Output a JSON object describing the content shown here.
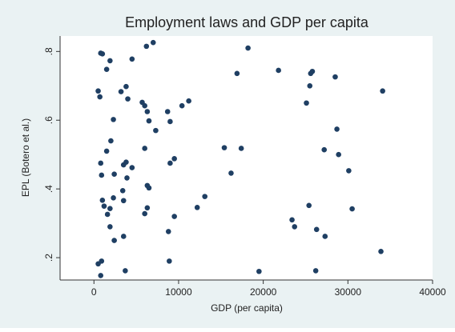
{
  "chart_data": {
    "type": "scatter",
    "title": "Employment laws and GDP per capita",
    "xlabel": "GDP (per capita)",
    "ylabel": "EPL (Botero et al.)",
    "xlim": [
      -4000,
      40000
    ],
    "ylim": [
      0.135,
      0.845
    ],
    "xticks": [
      0,
      10000,
      20000,
      30000,
      40000
    ],
    "yticks": [
      0.2,
      0.4,
      0.6,
      0.8
    ],
    "xtick_labels": [
      "0",
      "10000",
      "20000",
      "30000",
      "40000"
    ],
    "ytick_labels": [
      ".2",
      ".4",
      ".6",
      ".8"
    ],
    "grid": "horizontal",
    "points": [
      {
        "x": 800,
        "y": 0.795
      },
      {
        "x": 1000,
        "y": 0.793
      },
      {
        "x": 1900,
        "y": 0.773
      },
      {
        "x": 1500,
        "y": 0.748
      },
      {
        "x": 4500,
        "y": 0.778
      },
      {
        "x": 6200,
        "y": 0.815
      },
      {
        "x": 7000,
        "y": 0.826
      },
      {
        "x": 500,
        "y": 0.685
      },
      {
        "x": 700,
        "y": 0.668
      },
      {
        "x": 3200,
        "y": 0.683
      },
      {
        "x": 3800,
        "y": 0.698
      },
      {
        "x": 4000,
        "y": 0.662
      },
      {
        "x": 2300,
        "y": 0.602
      },
      {
        "x": 5700,
        "y": 0.652
      },
      {
        "x": 6000,
        "y": 0.642
      },
      {
        "x": 6300,
        "y": 0.625
      },
      {
        "x": 6500,
        "y": 0.598
      },
      {
        "x": 7300,
        "y": 0.57
      },
      {
        "x": 1500,
        "y": 0.51
      },
      {
        "x": 2000,
        "y": 0.54
      },
      {
        "x": 6000,
        "y": 0.518
      },
      {
        "x": 800,
        "y": 0.475
      },
      {
        "x": 900,
        "y": 0.44
      },
      {
        "x": 2400,
        "y": 0.443
      },
      {
        "x": 3500,
        "y": 0.47
      },
      {
        "x": 3800,
        "y": 0.478
      },
      {
        "x": 4500,
        "y": 0.462
      },
      {
        "x": 3900,
        "y": 0.432
      },
      {
        "x": 2300,
        "y": 0.374
      },
      {
        "x": 3400,
        "y": 0.395
      },
      {
        "x": 3500,
        "y": 0.366
      },
      {
        "x": 1000,
        "y": 0.367
      },
      {
        "x": 1200,
        "y": 0.35
      },
      {
        "x": 1600,
        "y": 0.326
      },
      {
        "x": 1900,
        "y": 0.343
      },
      {
        "x": 1900,
        "y": 0.29
      },
      {
        "x": 2400,
        "y": 0.25
      },
      {
        "x": 3500,
        "y": 0.262
      },
      {
        "x": 500,
        "y": 0.182
      },
      {
        "x": 900,
        "y": 0.19
      },
      {
        "x": 800,
        "y": 0.148
      },
      {
        "x": 3700,
        "y": 0.162
      },
      {
        "x": 6300,
        "y": 0.41
      },
      {
        "x": 6500,
        "y": 0.403
      },
      {
        "x": 6300,
        "y": 0.345
      },
      {
        "x": 6000,
        "y": 0.328
      },
      {
        "x": 8700,
        "y": 0.625
      },
      {
        "x": 9000,
        "y": 0.596
      },
      {
        "x": 10400,
        "y": 0.642
      },
      {
        "x": 11200,
        "y": 0.656
      },
      {
        "x": 9500,
        "y": 0.488
      },
      {
        "x": 9000,
        "y": 0.475
      },
      {
        "x": 9500,
        "y": 0.32
      },
      {
        "x": 8800,
        "y": 0.276
      },
      {
        "x": 8900,
        "y": 0.19
      },
      {
        "x": 12200,
        "y": 0.346
      },
      {
        "x": 13100,
        "y": 0.378
      },
      {
        "x": 15400,
        "y": 0.52
      },
      {
        "x": 16200,
        "y": 0.446
      },
      {
        "x": 17400,
        "y": 0.518
      },
      {
        "x": 16900,
        "y": 0.736
      },
      {
        "x": 18200,
        "y": 0.81
      },
      {
        "x": 19500,
        "y": 0.16
      },
      {
        "x": 21800,
        "y": 0.745
      },
      {
        "x": 23400,
        "y": 0.31
      },
      {
        "x": 23700,
        "y": 0.29
      },
      {
        "x": 25100,
        "y": 0.65
      },
      {
        "x": 25500,
        "y": 0.7
      },
      {
        "x": 25600,
        "y": 0.736
      },
      {
        "x": 25800,
        "y": 0.742
      },
      {
        "x": 25400,
        "y": 0.352
      },
      {
        "x": 26300,
        "y": 0.282
      },
      {
        "x": 26200,
        "y": 0.162
      },
      {
        "x": 27200,
        "y": 0.514
      },
      {
        "x": 27300,
        "y": 0.262
      },
      {
        "x": 28500,
        "y": 0.726
      },
      {
        "x": 28700,
        "y": 0.574
      },
      {
        "x": 28900,
        "y": 0.5
      },
      {
        "x": 30100,
        "y": 0.453
      },
      {
        "x": 30500,
        "y": 0.342
      },
      {
        "x": 34100,
        "y": 0.685
      },
      {
        "x": 33900,
        "y": 0.218
      }
    ]
  }
}
